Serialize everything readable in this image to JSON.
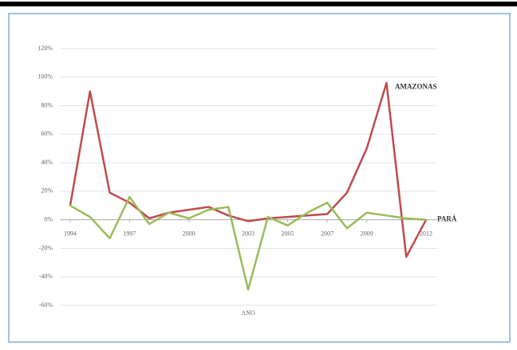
{
  "chart_data": {
    "type": "line",
    "x_label": "ANO",
    "x": [
      1994,
      1995,
      1996,
      1997,
      1998,
      1999,
      2000,
      2001,
      2002,
      2003,
      2004,
      2005,
      2006,
      2007,
      2008,
      2009,
      2010,
      2011,
      2012
    ],
    "series": [
      {
        "name": "AMAZONAS",
        "color": "#bf4b4b",
        "values": [
          10,
          90,
          19,
          12,
          1,
          5,
          7,
          9,
          3,
          -1,
          1,
          2,
          3,
          4,
          19,
          50,
          96,
          -26,
          0
        ]
      },
      {
        "name": "PARÁ",
        "color": "#9bbb59",
        "values": [
          10,
          2,
          -13,
          16,
          -3,
          5,
          1,
          7,
          9,
          -49,
          2,
          -4,
          5,
          12,
          -6,
          5,
          3,
          1,
          0
        ]
      }
    ],
    "xlim": [
      1994,
      2012
    ],
    "xticks": [
      1994,
      1997,
      2000,
      2003,
      2005,
      2007,
      2009,
      2012
    ],
    "ylim": [
      -60,
      120
    ],
    "yticks": [
      {
        "value": -60,
        "label": "-60%"
      },
      {
        "value": -40,
        "label": "-40%"
      },
      {
        "value": -20,
        "label": "-20%"
      },
      {
        "value": 0,
        "label": "0%"
      },
      {
        "value": 20,
        "label": "20%"
      },
      {
        "value": 40,
        "label": "40%"
      },
      {
        "value": 60,
        "label": "60%"
      },
      {
        "value": 80,
        "label": "80%"
      },
      {
        "value": 100,
        "label": "100%"
      },
      {
        "value": 120,
        "label": "120%"
      }
    ],
    "grid": true
  }
}
